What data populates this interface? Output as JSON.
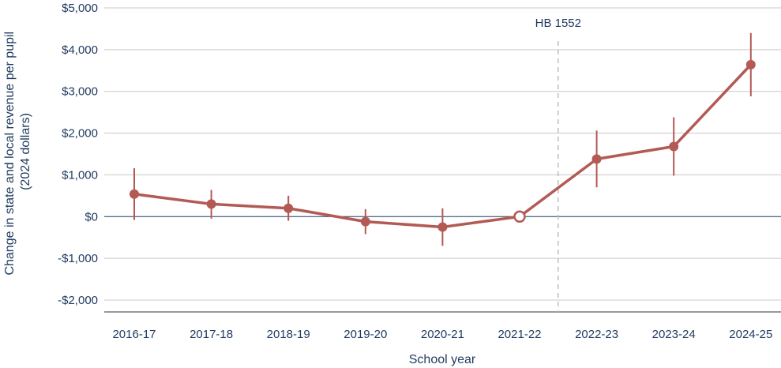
{
  "chart_data": {
    "type": "line",
    "title": "",
    "xlabel": "School year",
    "ylabel_lines": [
      "Change in state and local revenue per pupil",
      "(2024 dollars)"
    ],
    "ylim": [
      -2000,
      5000
    ],
    "yticks": [
      -2000,
      -1000,
      0,
      1000,
      2000,
      3000,
      4000,
      5000
    ],
    "ytick_labels": [
      "-$2,000",
      "-$1,000",
      "$0",
      "$1,000",
      "$2,000",
      "$3,000",
      "$4,000",
      "$5,000"
    ],
    "categories": [
      "2016-17",
      "2017-18",
      "2018-19",
      "2019-20",
      "2020-21",
      "2021-22",
      "2022-23",
      "2023-24",
      "2024-25"
    ],
    "series": [
      {
        "values": [
          540,
          300,
          200,
          -120,
          -250,
          0,
          1380,
          1680,
          3640
        ],
        "ci_low": [
          -80,
          -50,
          -100,
          -420,
          -700,
          0,
          700,
          980,
          2880
        ],
        "ci_high": [
          1160,
          640,
          500,
          180,
          200,
          0,
          2060,
          2380,
          4400
        ],
        "reference_index": 5
      }
    ],
    "annotation": {
      "label": "HB 1552",
      "between_index": 5.5
    },
    "grid": true,
    "colors": {
      "line": "#b35a55",
      "text": "#1e3a5f",
      "grid": "#c8c8c8",
      "annotation_line": "#bdbdbd"
    }
  }
}
